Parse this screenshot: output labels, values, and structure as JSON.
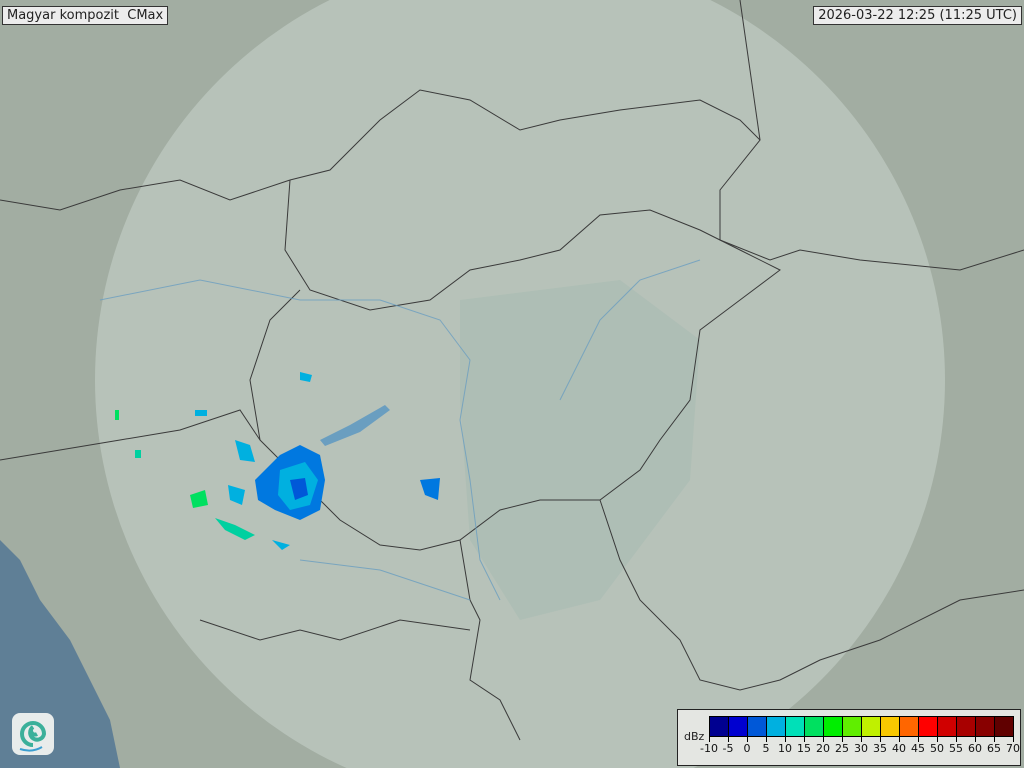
{
  "header": {
    "title": "Magyar kompozit  CMax",
    "timestamp": "2026-03-22 12:25 (11:25 UTC)"
  },
  "legend": {
    "unit": "dBz",
    "ticks": [
      "-10",
      "-5",
      "0",
      "5",
      "10",
      "15",
      "20",
      "25",
      "30",
      "35",
      "40",
      "45",
      "50",
      "55",
      "60",
      "65",
      "70"
    ],
    "colors": [
      "#000090",
      "#0000d0",
      "#0058d8",
      "#00b0e0",
      "#00e0b8",
      "#00e060",
      "#00ee00",
      "#60ee00",
      "#c0f000",
      "#f8c800",
      "#ff6600",
      "#ff0000",
      "#d00000",
      "#a80000",
      "#880000",
      "#600000"
    ]
  },
  "map": {
    "land_color": "#a3ae a2",
    "coverage_color": "#c4d0c8",
    "sea_color": "#5f7f96",
    "border_color": "#333333",
    "river_color": "#6a9ec0",
    "logo_icon": "swirl-logo-icon"
  }
}
